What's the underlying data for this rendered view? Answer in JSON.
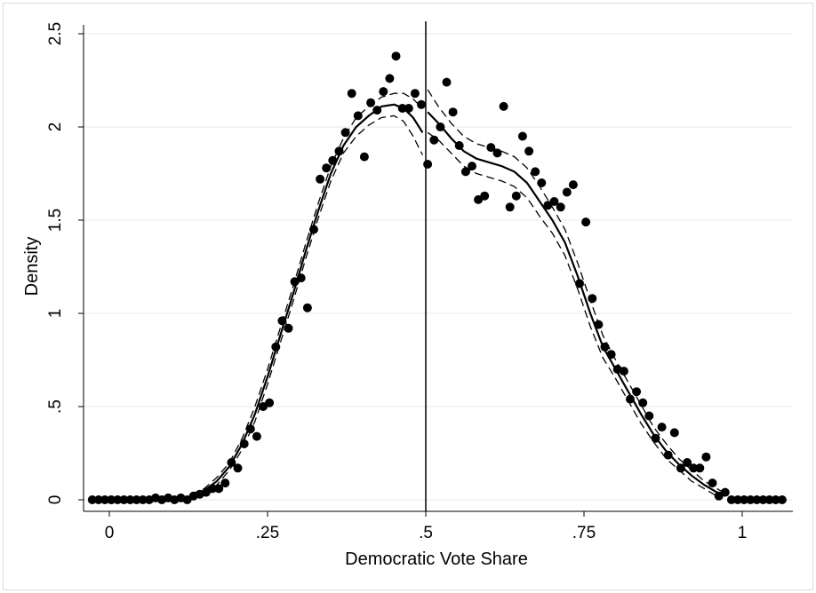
{
  "chart_data": {
    "type": "scatter",
    "title": "",
    "xlabel": "Democratic Vote Share",
    "ylabel": "Density",
    "xlim": [
      -0.03,
      1.065
    ],
    "ylim": [
      0,
      2.55
    ],
    "cutoff": 0.5,
    "grid": true,
    "x_ticks": [
      {
        "value": 0,
        "label": "0"
      },
      {
        "value": 0.25,
        "label": ".25"
      },
      {
        "value": 0.5,
        "label": ".5"
      },
      {
        "value": 0.75,
        "label": ".75"
      },
      {
        "value": 1,
        "label": "1"
      }
    ],
    "y_ticks": [
      {
        "value": 0,
        "label": "0"
      },
      {
        "value": 0.5,
        "label": ".5"
      },
      {
        "value": 1,
        "label": "1"
      },
      {
        "value": 1.5,
        "label": "1.5"
      },
      {
        "value": 2,
        "label": "2"
      },
      {
        "value": 2.5,
        "label": "2.5"
      }
    ],
    "points": [
      [
        -0.027,
        0
      ],
      [
        -0.017,
        0
      ],
      [
        -0.007,
        0
      ],
      [
        0.003,
        0
      ],
      [
        0.013,
        0
      ],
      [
        0.023,
        0
      ],
      [
        0.033,
        0
      ],
      [
        0.043,
        0
      ],
      [
        0.053,
        0
      ],
      [
        0.063,
        0
      ],
      [
        0.073,
        0.01
      ],
      [
        0.083,
        0
      ],
      [
        0.093,
        0.01
      ],
      [
        0.103,
        0
      ],
      [
        0.113,
        0.01
      ],
      [
        0.123,
        0
      ],
      [
        0.133,
        0.02
      ],
      [
        0.143,
        0.03
      ],
      [
        0.153,
        0.04
      ],
      [
        0.163,
        0.06
      ],
      [
        0.173,
        0.06
      ],
      [
        0.183,
        0.09
      ],
      [
        0.193,
        0.2
      ],
      [
        0.203,
        0.17
      ],
      [
        0.213,
        0.3
      ],
      [
        0.223,
        0.38
      ],
      [
        0.233,
        0.34
      ],
      [
        0.243,
        0.5
      ],
      [
        0.253,
        0.52
      ],
      [
        0.263,
        0.82
      ],
      [
        0.273,
        0.96
      ],
      [
        0.283,
        0.92
      ],
      [
        0.293,
        1.17
      ],
      [
        0.303,
        1.19
      ],
      [
        0.313,
        1.03
      ],
      [
        0.323,
        1.45
      ],
      [
        0.333,
        1.72
      ],
      [
        0.343,
        1.78
      ],
      [
        0.353,
        1.82
      ],
      [
        0.363,
        1.87
      ],
      [
        0.373,
        1.97
      ],
      [
        0.383,
        2.18
      ],
      [
        0.393,
        2.06
      ],
      [
        0.403,
        1.84
      ],
      [
        0.413,
        2.13
      ],
      [
        0.423,
        2.09
      ],
      [
        0.433,
        2.19
      ],
      [
        0.443,
        2.26
      ],
      [
        0.453,
        2.38
      ],
      [
        0.463,
        2.1
      ],
      [
        0.473,
        2.1
      ],
      [
        0.483,
        2.18
      ],
      [
        0.493,
        2.12
      ],
      [
        0.503,
        1.8
      ],
      [
        0.513,
        1.93
      ],
      [
        0.523,
        2.0
      ],
      [
        0.533,
        2.24
      ],
      [
        0.543,
        2.08
      ],
      [
        0.553,
        1.9
      ],
      [
        0.563,
        1.76
      ],
      [
        0.573,
        1.79
      ],
      [
        0.583,
        1.61
      ],
      [
        0.593,
        1.63
      ],
      [
        0.603,
        1.89
      ],
      [
        0.613,
        1.86
      ],
      [
        0.623,
        2.11
      ],
      [
        0.633,
        1.57
      ],
      [
        0.643,
        1.63
      ],
      [
        0.653,
        1.95
      ],
      [
        0.663,
        1.87
      ],
      [
        0.673,
        1.76
      ],
      [
        0.683,
        1.7
      ],
      [
        0.693,
        1.58
      ],
      [
        0.703,
        1.6
      ],
      [
        0.713,
        1.57
      ],
      [
        0.723,
        1.65
      ],
      [
        0.733,
        1.69
      ],
      [
        0.743,
        1.16
      ],
      [
        0.753,
        1.49
      ],
      [
        0.763,
        1.08
      ],
      [
        0.773,
        0.94
      ],
      [
        0.783,
        0.82
      ],
      [
        0.793,
        0.78
      ],
      [
        0.803,
        0.7
      ],
      [
        0.813,
        0.69
      ],
      [
        0.823,
        0.54
      ],
      [
        0.833,
        0.58
      ],
      [
        0.843,
        0.52
      ],
      [
        0.853,
        0.45
      ],
      [
        0.863,
        0.33
      ],
      [
        0.873,
        0.39
      ],
      [
        0.883,
        0.24
      ],
      [
        0.893,
        0.36
      ],
      [
        0.903,
        0.17
      ],
      [
        0.913,
        0.2
      ],
      [
        0.923,
        0.17
      ],
      [
        0.933,
        0.17
      ],
      [
        0.943,
        0.23
      ],
      [
        0.953,
        0.09
      ],
      [
        0.963,
        0.02
      ],
      [
        0.973,
        0.04
      ],
      [
        0.983,
        0
      ],
      [
        0.993,
        0
      ],
      [
        1.003,
        0
      ],
      [
        1.013,
        0
      ],
      [
        1.023,
        0
      ],
      [
        1.033,
        0
      ],
      [
        1.043,
        0
      ],
      [
        1.053,
        0
      ],
      [
        1.063,
        0
      ]
    ],
    "fit_left": [
      [
        0.13,
        0.02
      ],
      [
        0.15,
        0.05
      ],
      [
        0.17,
        0.1
      ],
      [
        0.19,
        0.18
      ],
      [
        0.21,
        0.3
      ],
      [
        0.23,
        0.46
      ],
      [
        0.25,
        0.66
      ],
      [
        0.27,
        0.88
      ],
      [
        0.29,
        1.1
      ],
      [
        0.31,
        1.33
      ],
      [
        0.33,
        1.55
      ],
      [
        0.35,
        1.75
      ],
      [
        0.37,
        1.9
      ],
      [
        0.39,
        2.0
      ],
      [
        0.41,
        2.06
      ],
      [
        0.43,
        2.11
      ],
      [
        0.45,
        2.12
      ],
      [
        0.465,
        2.1
      ],
      [
        0.48,
        2.05
      ],
      [
        0.495,
        1.97
      ]
    ],
    "fit_left_upper": [
      [
        0.13,
        0.03
      ],
      [
        0.15,
        0.06
      ],
      [
        0.17,
        0.12
      ],
      [
        0.19,
        0.2
      ],
      [
        0.21,
        0.33
      ],
      [
        0.23,
        0.5
      ],
      [
        0.25,
        0.7
      ],
      [
        0.27,
        0.92
      ],
      [
        0.29,
        1.14
      ],
      [
        0.31,
        1.37
      ],
      [
        0.33,
        1.59
      ],
      [
        0.35,
        1.79
      ],
      [
        0.37,
        1.94
      ],
      [
        0.39,
        2.05
      ],
      [
        0.41,
        2.11
      ],
      [
        0.43,
        2.16
      ],
      [
        0.45,
        2.18
      ],
      [
        0.465,
        2.18
      ],
      [
        0.48,
        2.15
      ],
      [
        0.495,
        2.1
      ]
    ],
    "fit_left_lower": [
      [
        0.13,
        0.01
      ],
      [
        0.15,
        0.03
      ],
      [
        0.17,
        0.08
      ],
      [
        0.19,
        0.16
      ],
      [
        0.21,
        0.27
      ],
      [
        0.23,
        0.42
      ],
      [
        0.25,
        0.62
      ],
      [
        0.27,
        0.84
      ],
      [
        0.29,
        1.06
      ],
      [
        0.31,
        1.29
      ],
      [
        0.33,
        1.51
      ],
      [
        0.35,
        1.71
      ],
      [
        0.37,
        1.86
      ],
      [
        0.39,
        1.95
      ],
      [
        0.41,
        2.01
      ],
      [
        0.43,
        2.05
      ],
      [
        0.45,
        2.06
      ],
      [
        0.465,
        2.03
      ],
      [
        0.48,
        1.95
      ],
      [
        0.495,
        1.85
      ]
    ],
    "fit_right": [
      [
        0.503,
        2.08
      ],
      [
        0.52,
        2.02
      ],
      [
        0.54,
        1.94
      ],
      [
        0.56,
        1.87
      ],
      [
        0.58,
        1.83
      ],
      [
        0.6,
        1.81
      ],
      [
        0.62,
        1.79
      ],
      [
        0.64,
        1.76
      ],
      [
        0.66,
        1.7
      ],
      [
        0.68,
        1.6
      ],
      [
        0.7,
        1.5
      ],
      [
        0.72,
        1.38
      ],
      [
        0.74,
        1.2
      ],
      [
        0.76,
        1.0
      ],
      [
        0.78,
        0.82
      ],
      [
        0.8,
        0.7
      ],
      [
        0.82,
        0.58
      ],
      [
        0.84,
        0.46
      ],
      [
        0.86,
        0.35
      ],
      [
        0.88,
        0.26
      ],
      [
        0.9,
        0.19
      ],
      [
        0.92,
        0.13
      ],
      [
        0.94,
        0.08
      ],
      [
        0.96,
        0.04
      ],
      [
        0.97,
        0.03
      ]
    ],
    "fit_right_upper": [
      [
        0.503,
        2.2
      ],
      [
        0.52,
        2.11
      ],
      [
        0.54,
        2.02
      ],
      [
        0.56,
        1.95
      ],
      [
        0.58,
        1.91
      ],
      [
        0.6,
        1.89
      ],
      [
        0.62,
        1.87
      ],
      [
        0.64,
        1.84
      ],
      [
        0.66,
        1.78
      ],
      [
        0.68,
        1.68
      ],
      [
        0.7,
        1.57
      ],
      [
        0.72,
        1.45
      ],
      [
        0.74,
        1.27
      ],
      [
        0.76,
        1.07
      ],
      [
        0.78,
        0.88
      ],
      [
        0.8,
        0.75
      ],
      [
        0.82,
        0.63
      ],
      [
        0.84,
        0.51
      ],
      [
        0.86,
        0.39
      ],
      [
        0.88,
        0.3
      ],
      [
        0.9,
        0.22
      ],
      [
        0.92,
        0.16
      ],
      [
        0.94,
        0.1
      ],
      [
        0.96,
        0.06
      ],
      [
        0.97,
        0.04
      ]
    ],
    "fit_right_lower": [
      [
        0.503,
        1.97
      ],
      [
        0.52,
        1.93
      ],
      [
        0.54,
        1.86
      ],
      [
        0.56,
        1.79
      ],
      [
        0.58,
        1.75
      ],
      [
        0.6,
        1.73
      ],
      [
        0.62,
        1.71
      ],
      [
        0.64,
        1.68
      ],
      [
        0.66,
        1.62
      ],
      [
        0.68,
        1.52
      ],
      [
        0.7,
        1.43
      ],
      [
        0.72,
        1.31
      ],
      [
        0.74,
        1.13
      ],
      [
        0.76,
        0.93
      ],
      [
        0.78,
        0.76
      ],
      [
        0.8,
        0.65
      ],
      [
        0.82,
        0.53
      ],
      [
        0.84,
        0.41
      ],
      [
        0.86,
        0.31
      ],
      [
        0.88,
        0.22
      ],
      [
        0.9,
        0.16
      ],
      [
        0.92,
        0.1
      ],
      [
        0.94,
        0.06
      ],
      [
        0.96,
        0.02
      ],
      [
        0.97,
        0.02
      ]
    ]
  }
}
